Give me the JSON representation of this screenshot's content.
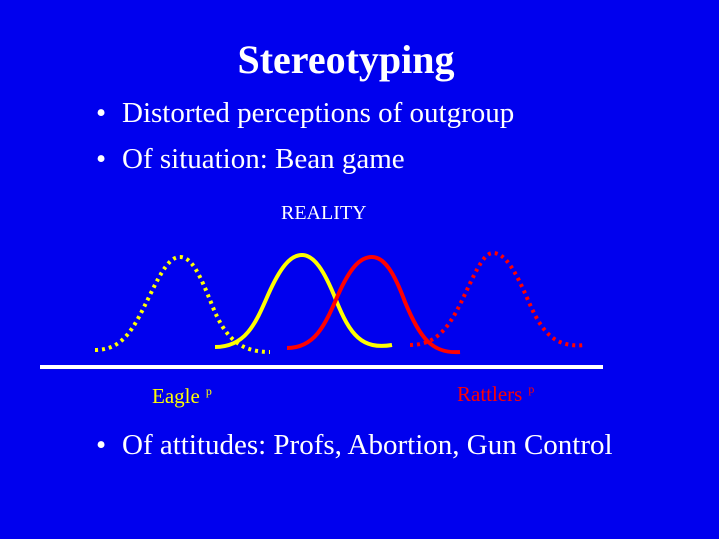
{
  "title": "Stereotyping",
  "bullets": [
    "Distorted perceptions of outgroup",
    "Of situation: Bean game",
    "Of attitudes: Profs, Abortion, Gun Control"
  ],
  "bullet_glyph": "•",
  "diagram": {
    "center_label": "REALITY",
    "left_label": "Eagle",
    "left_sup": "p",
    "right_label": "Rattlers",
    "right_sup": "p",
    "colors": {
      "background": "#0000ee",
      "eagles": "#ffff00",
      "rattlers": "#ff0000",
      "axis": "#ffffff"
    }
  }
}
